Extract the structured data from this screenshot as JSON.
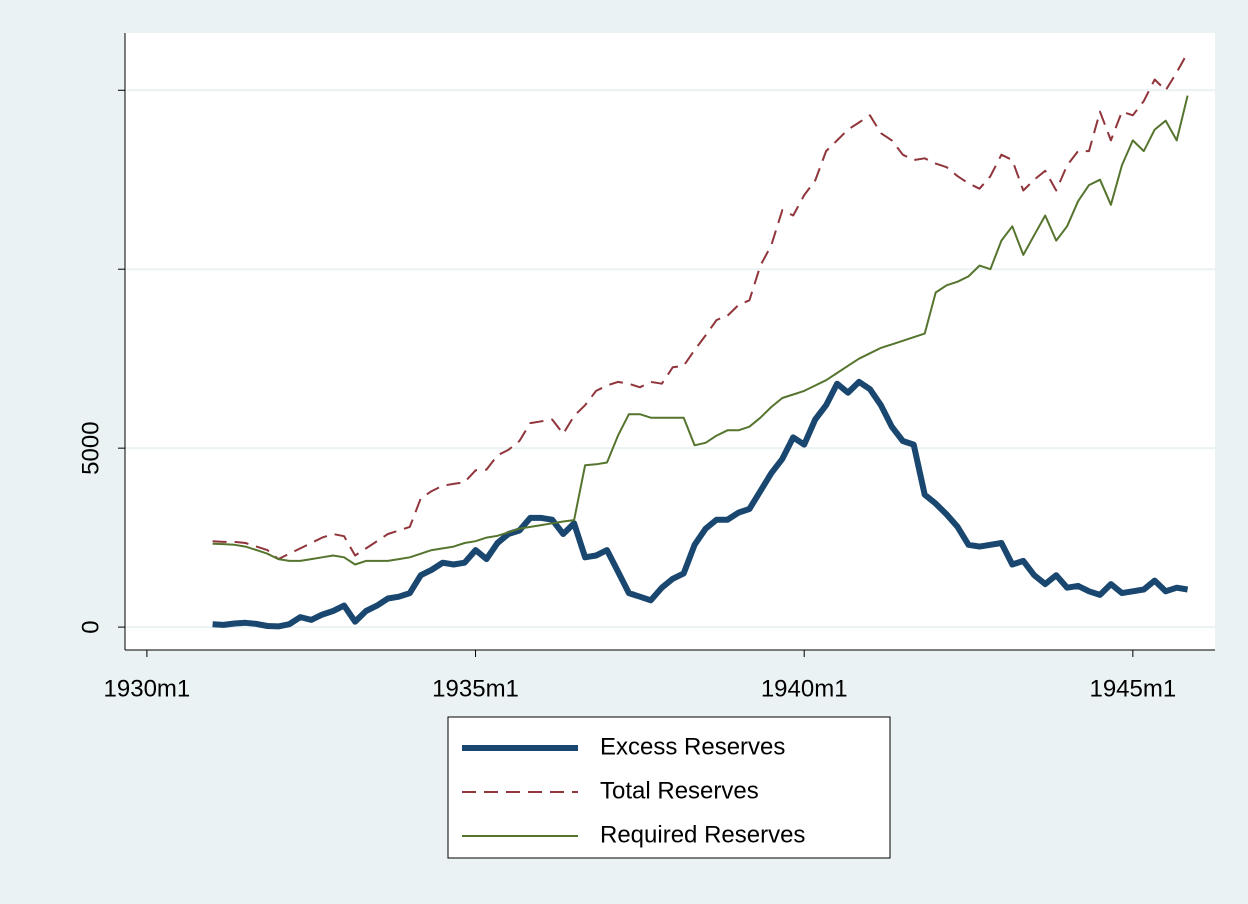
{
  "chart_data": {
    "type": "line",
    "x": [
      -348,
      -346,
      -344,
      -342,
      -340,
      -338,
      -336,
      -334,
      -332,
      -330,
      -328,
      -326,
      -324,
      -322,
      -320,
      -318,
      -316,
      -314,
      -312,
      -310,
      -308,
      -306,
      -304,
      -302,
      -300,
      -298,
      -296,
      -294,
      -292,
      -290,
      -288,
      -286,
      -284,
      -282,
      -280,
      -278,
      -276,
      -274,
      -272,
      -270,
      -268,
      -266,
      -264,
      -262,
      -260,
      -258,
      -256,
      -254,
      -252,
      -250,
      -248,
      -246,
      -244,
      -242,
      -240,
      -238,
      -236,
      -234,
      -232,
      -230,
      -228,
      -226,
      -224,
      -222,
      -220,
      -218,
      -216,
      -214,
      -212,
      -210,
      -208,
      -206,
      -204,
      -202,
      -200,
      -198,
      -196,
      -194,
      -192,
      -190,
      -188,
      -186,
      -184,
      -182,
      -180,
      -178,
      -176,
      -174,
      -172,
      -170
    ],
    "xlim": [
      -364,
      -165
    ],
    "xticks": [
      {
        "value": -360,
        "label": "1930m1"
      },
      {
        "value": -300,
        "label": "1935m1"
      },
      {
        "value": -240,
        "label": "1940m1"
      },
      {
        "value": -180,
        "label": "1945m1"
      }
    ],
    "ylim": [
      -640,
      16600
    ],
    "yticks": [
      0,
      5000
    ],
    "yminor_ticks": [
      10000,
      15000
    ],
    "grid": true,
    "legend": "bottom",
    "series": [
      {
        "name": "Excess Reserves",
        "color": "#1a476f",
        "style": "thick",
        "values": [
          80,
          60,
          100,
          120,
          90,
          30,
          20,
          80,
          280,
          200,
          350,
          450,
          600,
          150,
          450,
          600,
          800,
          850,
          950,
          1450,
          1600,
          1800,
          1750,
          1800,
          2150,
          1900,
          2350,
          2600,
          2700,
          3050,
          3050,
          3000,
          2600,
          2900,
          1950,
          2000,
          2150,
          1550,
          950,
          850,
          750,
          1100,
          1350,
          1500,
          2300,
          2750,
          3000,
          3000,
          3200,
          3300,
          3800,
          4300,
          4700,
          5300,
          5100,
          5800,
          6200,
          6800,
          6550,
          6850,
          6650,
          6200,
          5600,
          5200,
          5100,
          3700,
          3450,
          3150,
          2800,
          2300,
          2250,
          2300,
          2350,
          1750,
          1850,
          1450,
          1200,
          1450,
          1100,
          1150,
          1000,
          900,
          1200,
          950,
          1000,
          1050,
          1300,
          1000,
          1100,
          1050
        ]
      },
      {
        "name": "Total Reserves",
        "color": "#90353b",
        "style": "dash",
        "values": [
          2400,
          2380,
          2380,
          2350,
          2250,
          2150,
          1900,
          2050,
          2200,
          2350,
          2500,
          2600,
          2540,
          2000,
          2200,
          2400,
          2600,
          2700,
          2800,
          3600,
          3800,
          3950,
          4000,
          4050,
          4380,
          4400,
          4800,
          4950,
          5200,
          5700,
          5750,
          5800,
          5400,
          5900,
          6200,
          6600,
          6750,
          6850,
          6800,
          6700,
          6850,
          6800,
          7260,
          7300,
          7740,
          8150,
          8580,
          8700,
          9000,
          9130,
          10100,
          10670,
          11650,
          11500,
          12070,
          12480,
          13300,
          13600,
          13900,
          14100,
          14300,
          13800,
          13600,
          13200,
          13050,
          13100,
          12950,
          12850,
          12600,
          12400,
          12250,
          12600,
          13200,
          13050,
          12200,
          12500,
          12750,
          12200,
          12900,
          13300,
          13300,
          14400,
          13600,
          14400,
          14300,
          14700,
          15300,
          15000,
          15500,
          16050
        ]
      },
      {
        "name": "Required Reserves",
        "color": "#55752f",
        "style": "thin",
        "values": [
          2330,
          2320,
          2300,
          2250,
          2150,
          2050,
          1900,
          1850,
          1850,
          1900,
          1950,
          2000,
          1950,
          1750,
          1850,
          1850,
          1850,
          1900,
          1950,
          2050,
          2150,
          2200,
          2250,
          2350,
          2400,
          2500,
          2550,
          2650,
          2750,
          2800,
          2850,
          2900,
          2950,
          2990,
          4520,
          4550,
          4600,
          5350,
          5950,
          5950,
          5850,
          5850,
          5850,
          5850,
          5080,
          5150,
          5350,
          5500,
          5500,
          5600,
          5850,
          6150,
          6400,
          6500,
          6600,
          6750,
          6900,
          7100,
          7300,
          7500,
          7650,
          7800,
          7900,
          8000,
          8100,
          8200,
          9350,
          9550,
          9650,
          9800,
          10100,
          10000,
          10800,
          11200,
          10400,
          10950,
          11500,
          10800,
          11200,
          11900,
          12350,
          12500,
          11800,
          12900,
          13600,
          13300,
          13900,
          14150,
          13600,
          14850
        ]
      }
    ]
  }
}
